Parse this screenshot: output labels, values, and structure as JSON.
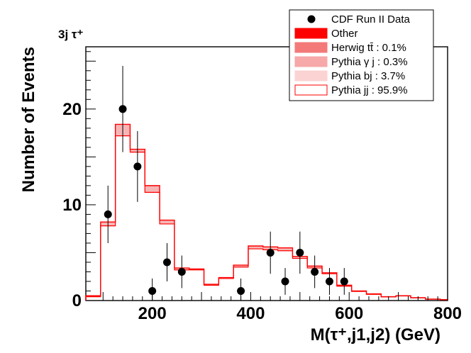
{
  "chart_data": {
    "type": "histogram",
    "corner_label": "3j τ⁺",
    "xlabel": "M(τ⁺,j1,j2) (GeV)",
    "ylabel": "Number of Events",
    "xlim": [
      65,
      800
    ],
    "ylim": [
      0,
      26.5
    ],
    "x_ticks": [
      200,
      400,
      600,
      800
    ],
    "y_ticks": [
      0,
      10,
      20
    ],
    "bin_edges": [
      65,
      95,
      125,
      155,
      185,
      215,
      245,
      275,
      305,
      335,
      365,
      395,
      425,
      455,
      485,
      515,
      545,
      575,
      605,
      635,
      665,
      695,
      725,
      755,
      785,
      800
    ],
    "series": [
      {
        "name": "Pythia jj : 95.9%",
        "role": "stack-top",
        "values": [
          0.5,
          8.2,
          18.4,
          15.8,
          12.0,
          8.4,
          3.4,
          3.3,
          1.7,
          2.4,
          3.7,
          5.7,
          5.6,
          5.5,
          4.6,
          3.6,
          2.9,
          1.6,
          1.0,
          0.7,
          0.4,
          0.5,
          0.3,
          0.15,
          0.1
        ]
      },
      {
        "name": "Pythia bj : 3.7%",
        "role": "stack-base",
        "values": [
          0.4,
          7.8,
          17.2,
          15.5,
          11.3,
          8.0,
          3.2,
          3.2,
          1.6,
          2.3,
          3.5,
          5.4,
          5.3,
          5.2,
          4.4,
          3.4,
          2.8,
          1.5,
          0.95,
          0.65,
          0.38,
          0.48,
          0.28,
          0.14,
          0.09
        ]
      }
    ],
    "data_points": [
      {
        "x": 110,
        "y": 9,
        "err_lo": 6,
        "err_hi": 12
      },
      {
        "x": 140,
        "y": 20,
        "err_lo": 15.5,
        "err_hi": 24.5
      },
      {
        "x": 170,
        "y": 14,
        "err_lo": 10.3,
        "err_hi": 17.7
      },
      {
        "x": 200,
        "y": 1,
        "err_lo": 0,
        "err_hi": 2.3
      },
      {
        "x": 230,
        "y": 4,
        "err_lo": 2,
        "err_hi": 6
      },
      {
        "x": 260,
        "y": 3,
        "err_lo": 1.3,
        "err_hi": 4.7
      },
      {
        "x": 380,
        "y": 1,
        "err_lo": 0,
        "err_hi": 2.3
      },
      {
        "x": 440,
        "y": 5,
        "err_lo": 2.8,
        "err_hi": 7.2
      },
      {
        "x": 470,
        "y": 2,
        "err_lo": 0.6,
        "err_hi": 3.4
      },
      {
        "x": 500,
        "y": 5,
        "err_lo": 2.8,
        "err_hi": 7.2
      },
      {
        "x": 530,
        "y": 3,
        "err_lo": 1.3,
        "err_hi": 4.7
      },
      {
        "x": 560,
        "y": 2,
        "err_lo": 0.6,
        "err_hi": 3.4
      },
      {
        "x": 590,
        "y": 2,
        "err_lo": 0.6,
        "err_hi": 3.4
      }
    ],
    "legend": {
      "placement": "top-right",
      "entries": [
        {
          "label": "CDF Run II Data",
          "marker": "dot",
          "color": "#000000"
        },
        {
          "label": "Other",
          "marker": "box",
          "color": "#ff0000"
        },
        {
          "label": "Herwig tt̄ : 0.1%",
          "marker": "box",
          "color": "#f47a7a"
        },
        {
          "label": "Pythia γ j : 0.3%",
          "marker": "box",
          "color": "#f7a8a8"
        },
        {
          "label": "Pythia bj : 3.7%",
          "marker": "box",
          "color": "#fbd3d3"
        },
        {
          "label": "Pythia jj : 95.9%",
          "marker": "box",
          "color": "#ffffff"
        }
      ]
    },
    "colors": {
      "line": "#ff0000",
      "fill": "#f6b5b5",
      "data": "#000000"
    }
  }
}
